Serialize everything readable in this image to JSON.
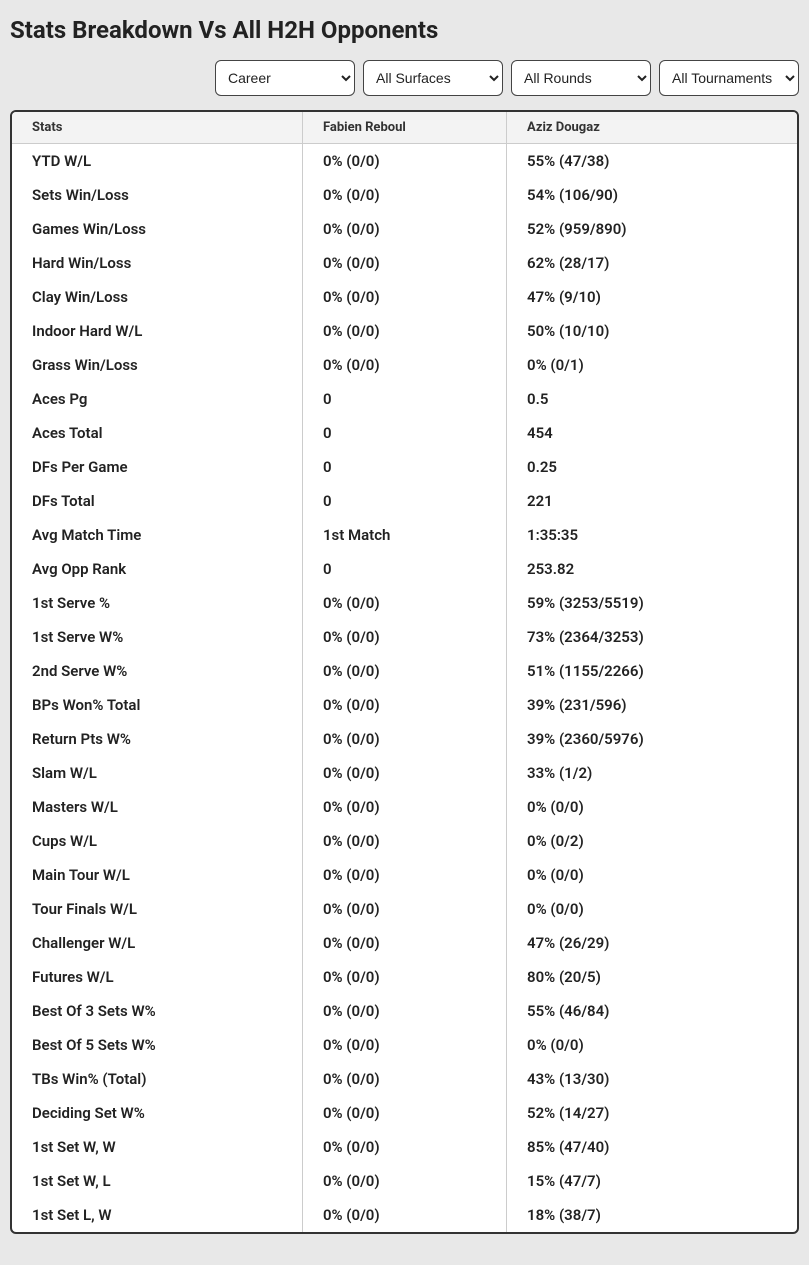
{
  "title": "Stats Breakdown Vs All H2H Opponents",
  "filters": {
    "period": "Career",
    "surface": "All Surfaces",
    "round": "All Rounds",
    "tournament": "All Tournaments"
  },
  "columns": {
    "stats": "Stats",
    "p1": "Fabien Reboul",
    "p2": "Aziz Dougaz"
  },
  "rows": [
    {
      "stat": "YTD W/L",
      "p1": "0% (0/0)",
      "p2": "55% (47/38)"
    },
    {
      "stat": "Sets Win/Loss",
      "p1": "0% (0/0)",
      "p2": "54% (106/90)"
    },
    {
      "stat": "Games Win/Loss",
      "p1": "0% (0/0)",
      "p2": "52% (959/890)"
    },
    {
      "stat": "Hard Win/Loss",
      "p1": "0% (0/0)",
      "p2": "62% (28/17)"
    },
    {
      "stat": "Clay Win/Loss",
      "p1": "0% (0/0)",
      "p2": "47% (9/10)"
    },
    {
      "stat": "Indoor Hard W/L",
      "p1": "0% (0/0)",
      "p2": "50% (10/10)"
    },
    {
      "stat": "Grass Win/Loss",
      "p1": "0% (0/0)",
      "p2": "0% (0/1)"
    },
    {
      "stat": "Aces Pg",
      "p1": "0",
      "p2": "0.5"
    },
    {
      "stat": "Aces Total",
      "p1": "0",
      "p2": "454"
    },
    {
      "stat": "DFs Per Game",
      "p1": "0",
      "p2": "0.25"
    },
    {
      "stat": "DFs Total",
      "p1": "0",
      "p2": "221"
    },
    {
      "stat": "Avg Match Time",
      "p1": "1st Match",
      "p2": "1:35:35"
    },
    {
      "stat": "Avg Opp Rank",
      "p1": "0",
      "p2": "253.82"
    },
    {
      "stat": "1st Serve %",
      "p1": "0% (0/0)",
      "p2": "59% (3253/5519)"
    },
    {
      "stat": "1st Serve W%",
      "p1": "0% (0/0)",
      "p2": "73% (2364/3253)"
    },
    {
      "stat": "2nd Serve W%",
      "p1": "0% (0/0)",
      "p2": "51% (1155/2266)"
    },
    {
      "stat": "BPs Won% Total",
      "p1": "0% (0/0)",
      "p2": "39% (231/596)"
    },
    {
      "stat": "Return Pts W%",
      "p1": "0% (0/0)",
      "p2": "39% (2360/5976)"
    },
    {
      "stat": "Slam W/L",
      "p1": "0% (0/0)",
      "p2": "33% (1/2)"
    },
    {
      "stat": "Masters W/L",
      "p1": "0% (0/0)",
      "p2": "0% (0/0)"
    },
    {
      "stat": "Cups W/L",
      "p1": "0% (0/0)",
      "p2": "0% (0/2)"
    },
    {
      "stat": "Main Tour W/L",
      "p1": "0% (0/0)",
      "p2": "0% (0/0)"
    },
    {
      "stat": "Tour Finals W/L",
      "p1": "0% (0/0)",
      "p2": "0% (0/0)"
    },
    {
      "stat": "Challenger W/L",
      "p1": "0% (0/0)",
      "p2": "47% (26/29)"
    },
    {
      "stat": "Futures W/L",
      "p1": "0% (0/0)",
      "p2": "80% (20/5)"
    },
    {
      "stat": "Best Of 3 Sets W%",
      "p1": "0% (0/0)",
      "p2": "55% (46/84)"
    },
    {
      "stat": "Best Of 5 Sets W%",
      "p1": "0% (0/0)",
      "p2": "0% (0/0)"
    },
    {
      "stat": "TBs Win% (Total)",
      "p1": "0% (0/0)",
      "p2": "43% (13/30)"
    },
    {
      "stat": "Deciding Set W%",
      "p1": "0% (0/0)",
      "p2": "52% (14/27)"
    },
    {
      "stat": "1st Set W, W",
      "p1": "0% (0/0)",
      "p2": "85% (47/40)"
    },
    {
      "stat": "1st Set W, L",
      "p1": "0% (0/0)",
      "p2": "15% (47/7)"
    },
    {
      "stat": "1st Set L, W",
      "p1": "0% (0/0)",
      "p2": "18% (38/7)"
    }
  ]
}
